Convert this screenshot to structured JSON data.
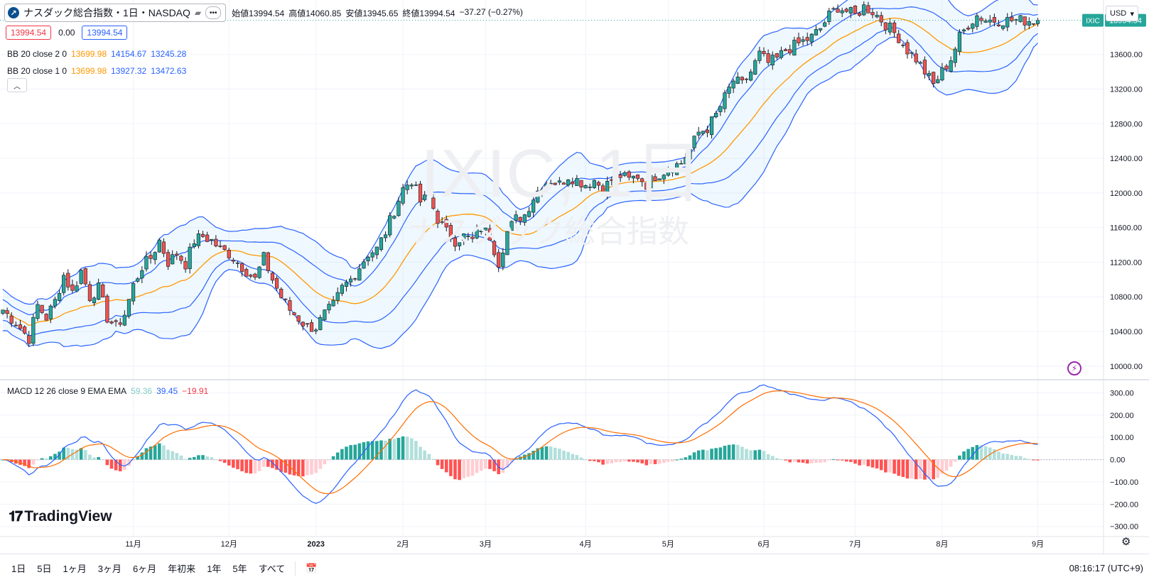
{
  "symbol": {
    "title": "ナスダック総合指数・1日・NASDAQ",
    "more": "•••",
    "ohlc": {
      "open_label": "始値",
      "open": "13994.54",
      "high_label": "高値",
      "high": "14060.85",
      "low_label": "安値",
      "low": "13945.65",
      "close_label": "終値",
      "close": "13994.54",
      "change": "−37.27 (−0.27%)"
    },
    "bid": "13994.54",
    "spread": "0.00",
    "ask": "13994.54"
  },
  "indicators": {
    "bb2": {
      "name": "BB 20 close 2 0",
      "basis": "13699.98",
      "upper": "14154.67",
      "lower": "13245.28"
    },
    "bb1": {
      "name": "BB 20 close 1 0",
      "basis": "13699.98",
      "upper": "13927.32",
      "lower": "13472.63"
    },
    "macd": {
      "name": "MACD 12 26 close 9 EMA EMA",
      "hist": "59.36",
      "macd": "39.45",
      "signal": "−19.91"
    }
  },
  "currency": "USD",
  "watermark": {
    "big": "IXIC, 1日",
    "small": "ナスダック総合指数"
  },
  "price_axis": {
    "ticks": [
      "10000.00",
      "10400.00",
      "10800.00",
      "11200.00",
      "11600.00",
      "12000.00",
      "12400.00",
      "12800.00",
      "13200.00",
      "13600.00"
    ],
    "last_label": "IXIC",
    "last_value": "13994.54"
  },
  "macd_axis": {
    "ticks": [
      "300.00",
      "200.00",
      "100.00",
      "0.00",
      "−100.00",
      "−200.00",
      "−300.00"
    ]
  },
  "time_axis": {
    "ticks": [
      "11月",
      "12月",
      "2023",
      "2月",
      "3月",
      "4月",
      "5月",
      "6月",
      "7月",
      "8月",
      "9月"
    ]
  },
  "brand": "TradingView",
  "ranges": [
    "1日",
    "5日",
    "1ヶ月",
    "3ヶ月",
    "6ヶ月",
    "年初来",
    "1年",
    "5年",
    "すべて"
  ],
  "clock": "08:16:17 (UTC+9)",
  "colors": {
    "up": "#26a69a",
    "down": "#ef5350",
    "basis": "#ff9800",
    "band": "#2962ff",
    "hist_up_strong": "#26a69a",
    "hist_up_weak": "#b2dfdb",
    "hist_dn_strong": "#ff5252",
    "hist_dn_weak": "#ffcdd2",
    "signal": "#ff6d00"
  },
  "chart_data": {
    "type": "candlestick",
    "ylim": [
      9900,
      14180
    ],
    "macd_ylim": [
      -320,
      330
    ],
    "anchors_x": [
      [
        0,
        "2022-10-13"
      ],
      [
        30,
        "2022-11-01"
      ],
      [
        52,
        "2022-12-01"
      ],
      [
        72,
        "2023-01-01"
      ],
      [
        92,
        "2023-02-01"
      ],
      [
        111,
        "2023-03-01"
      ],
      [
        134,
        "2023-04-01"
      ],
      [
        153,
        "2023-05-01"
      ],
      [
        175,
        "2023-06-01"
      ],
      [
        196,
        "2023-07-01"
      ],
      [
        216,
        "2023-08-01"
      ],
      [
        238,
        "2023-09-01"
      ]
    ],
    "close_path": [
      [
        0,
        10650
      ],
      [
        3,
        10500
      ],
      [
        6,
        10320
      ],
      [
        8,
        10700
      ],
      [
        10,
        10560
      ],
      [
        12,
        10750
      ],
      [
        14,
        11050
      ],
      [
        16,
        10850
      ],
      [
        18,
        11100
      ],
      [
        20,
        10800
      ],
      [
        22,
        10900
      ],
      [
        24,
        10560
      ],
      [
        26,
        10450
      ],
      [
        28,
        10600
      ],
      [
        30,
        10930
      ],
      [
        32,
        11150
      ],
      [
        34,
        11250
      ],
      [
        36,
        11450
      ],
      [
        38,
        11200
      ],
      [
        40,
        11300
      ],
      [
        42,
        11180
      ],
      [
        44,
        11450
      ],
      [
        46,
        11500
      ],
      [
        48,
        11450
      ],
      [
        50,
        11350
      ],
      [
        52,
        11300
      ],
      [
        54,
        11200
      ],
      [
        56,
        11100
      ],
      [
        58,
        11000
      ],
      [
        60,
        11250
      ],
      [
        62,
        11000
      ],
      [
        64,
        10800
      ],
      [
        66,
        10650
      ],
      [
        68,
        10550
      ],
      [
        70,
        10450
      ],
      [
        72,
        10450
      ],
      [
        74,
        10600
      ],
      [
        76,
        10700
      ],
      [
        78,
        10900
      ],
      [
        80,
        11000
      ],
      [
        82,
        11150
      ],
      [
        84,
        11300
      ],
      [
        86,
        11350
      ],
      [
        88,
        11550
      ],
      [
        90,
        11800
      ],
      [
        92,
        12050
      ],
      [
        94,
        12150
      ],
      [
        96,
        11900
      ],
      [
        98,
        11950
      ],
      [
        100,
        11700
      ],
      [
        102,
        11550
      ],
      [
        104,
        11450
      ],
      [
        106,
        11500
      ],
      [
        108,
        11450
      ],
      [
        110,
        11600
      ],
      [
        112,
        11500
      ],
      [
        114,
        11200
      ],
      [
        116,
        11550
      ],
      [
        118,
        11700
      ],
      [
        120,
        11750
      ],
      [
        122,
        11950
      ],
      [
        124,
        12100
      ],
      [
        126,
        12150
      ],
      [
        128,
        12100
      ],
      [
        130,
        12200
      ],
      [
        132,
        12150
      ],
      [
        134,
        12100
      ],
      [
        136,
        12150
      ],
      [
        138,
        12050
      ],
      [
        140,
        12150
      ],
      [
        142,
        12200
      ],
      [
        144,
        12150
      ],
      [
        146,
        12200
      ],
      [
        148,
        12100
      ],
      [
        150,
        12200
      ],
      [
        152,
        12250
      ],
      [
        154,
        12300
      ],
      [
        156,
        12350
      ],
      [
        158,
        12500
      ],
      [
        160,
        12700
      ],
      [
        162,
        12750
      ],
      [
        164,
        12900
      ],
      [
        166,
        13100
      ],
      [
        168,
        13300
      ],
      [
        170,
        13250
      ],
      [
        172,
        13400
      ],
      [
        174,
        13600
      ],
      [
        176,
        13500
      ],
      [
        178,
        13550
      ],
      [
        180,
        13650
      ],
      [
        182,
        13700
      ],
      [
        184,
        13750
      ],
      [
        186,
        13800
      ],
      [
        188,
        13900
      ],
      [
        190,
        14050
      ],
      [
        192,
        14150
      ],
      [
        194,
        14100
      ],
      [
        196,
        14050
      ],
      [
        198,
        14150
      ],
      [
        200,
        14100
      ],
      [
        202,
        14000
      ],
      [
        204,
        13900
      ],
      [
        206,
        13800
      ],
      [
        208,
        13650
      ],
      [
        210,
        13550
      ],
      [
        212,
        13400
      ],
      [
        214,
        13250
      ],
      [
        216,
        13400
      ],
      [
        218,
        13550
      ],
      [
        220,
        13800
      ],
      [
        222,
        13950
      ],
      [
        224,
        14050
      ],
      [
        226,
        14000
      ],
      [
        228,
        13994.54
      ]
    ],
    "series": [
      {
        "name": "IXIC",
        "last": 13994.54
      },
      {
        "name": "BB 20 close 2 0",
        "last_basis": 13699.98,
        "last_upper": 14154.67,
        "last_lower": 13245.28
      },
      {
        "name": "BB 20 close 1 0",
        "last_upper": 13927.32,
        "last_lower": 13472.63
      },
      {
        "name": "MACD 12 26 close 9 EMA EMA",
        "last_hist": 59.36,
        "last_macd": 39.45,
        "last_signal": -19.91
      }
    ]
  }
}
